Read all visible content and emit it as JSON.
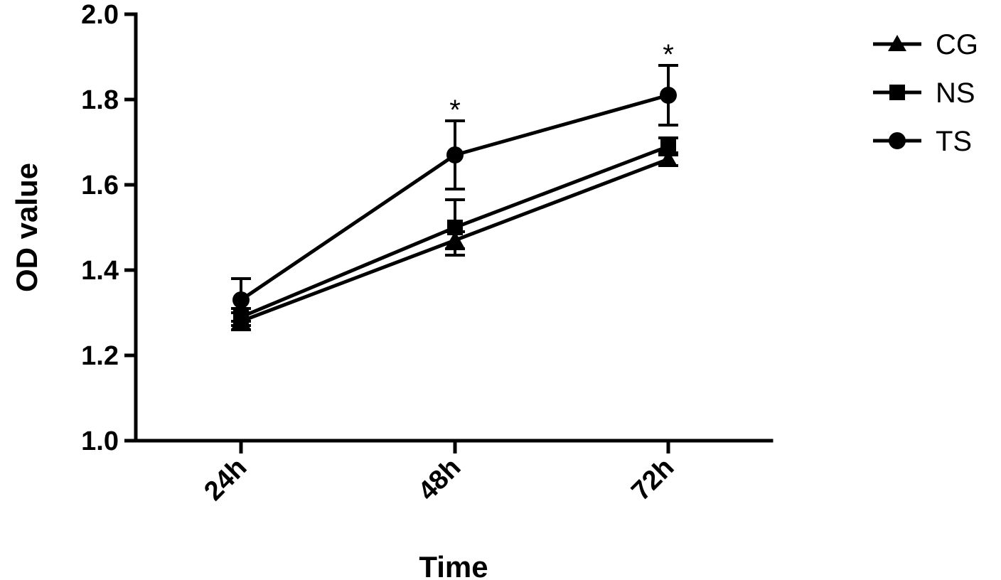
{
  "chart_data": {
    "type": "line",
    "title": "",
    "xlabel": "Time",
    "ylabel": "OD value",
    "categories": [
      "24h",
      "48h",
      "72h"
    ],
    "ylim": [
      1.0,
      2.0
    ],
    "yticks": [
      "1.0",
      "1.2",
      "1.4",
      "1.6",
      "1.8",
      "2.0"
    ],
    "grid": false,
    "legend_position": "top-right",
    "series": [
      {
        "name": "CG",
        "marker": "triangle",
        "values": [
          1.28,
          1.47,
          1.66
        ],
        "errors": [
          0.02,
          0.02,
          0.015
        ]
      },
      {
        "name": "NS",
        "marker": "square",
        "values": [
          1.29,
          1.5,
          1.69
        ],
        "errors": [
          0.02,
          0.065,
          0.02
        ]
      },
      {
        "name": "TS",
        "marker": "circle",
        "values": [
          1.33,
          1.67,
          1.81
        ],
        "errors": [
          0.05,
          0.08,
          0.07
        ]
      }
    ],
    "annotations": [
      {
        "category": "48h",
        "text": "*"
      },
      {
        "category": "72h",
        "text": "*"
      }
    ]
  }
}
